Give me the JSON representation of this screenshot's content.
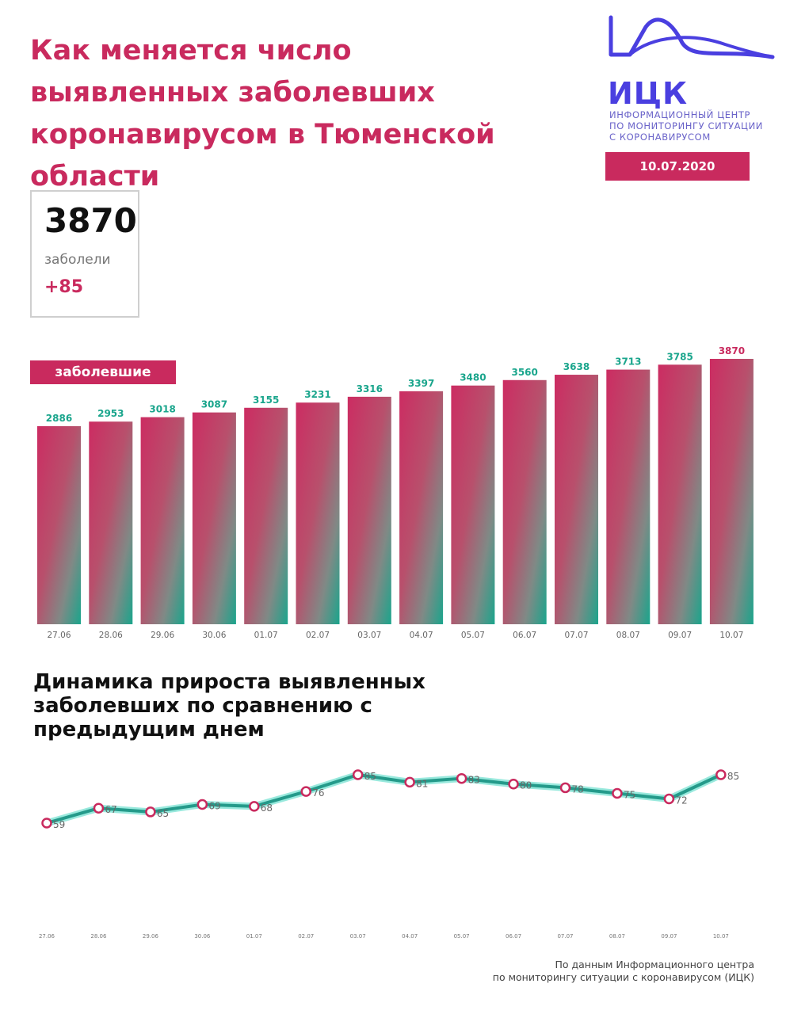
{
  "title": "Как меняется число выявленных заболевших коронавирусом в Тюменской области",
  "logo": {
    "abbr": "ИЦК",
    "subtitle_lines": [
      "ИНФОРМАЦИОННЫЙ ЦЕНТР",
      "ПО МОНИТОРИНГУ СИТУАЦИИ",
      "С КОРОНАВИРУСОМ"
    ]
  },
  "date": "10.07.2020",
  "summary": {
    "total": "3870",
    "label": "заболели",
    "delta": "+85"
  },
  "colors": {
    "accent": "#c92a5e",
    "teal": "#1aa58c",
    "logo": "#4a3fe0"
  },
  "chart_data": [
    {
      "type": "bar",
      "label": "заболевшие",
      "categories": [
        "27.06",
        "28.06",
        "29.06",
        "30.06",
        "01.07",
        "02.07",
        "03.07",
        "04.07",
        "05.07",
        "06.07",
        "07.07",
        "08.07",
        "09.07",
        "10.07"
      ],
      "values": [
        2886,
        2953,
        3018,
        3087,
        3155,
        3231,
        3316,
        3397,
        3480,
        3560,
        3638,
        3713,
        3785,
        3870
      ]
    },
    {
      "type": "line",
      "title": "Динамика прироста выявленных заболевших по сравнению с предыдущим днем",
      "categories": [
        "27.06",
        "28.06",
        "29.06",
        "30.06",
        "01.07",
        "02.07",
        "03.07",
        "04.07",
        "05.07",
        "06.07",
        "07.07",
        "08.07",
        "09.07",
        "10.07"
      ],
      "values": [
        59,
        67,
        65,
        69,
        68,
        76,
        85,
        81,
        83,
        80,
        78,
        75,
        72,
        85
      ]
    }
  ],
  "source": [
    "По данным Информационного центра",
    "по мониторингу ситуации с коронавирусом (ИЦК)"
  ]
}
